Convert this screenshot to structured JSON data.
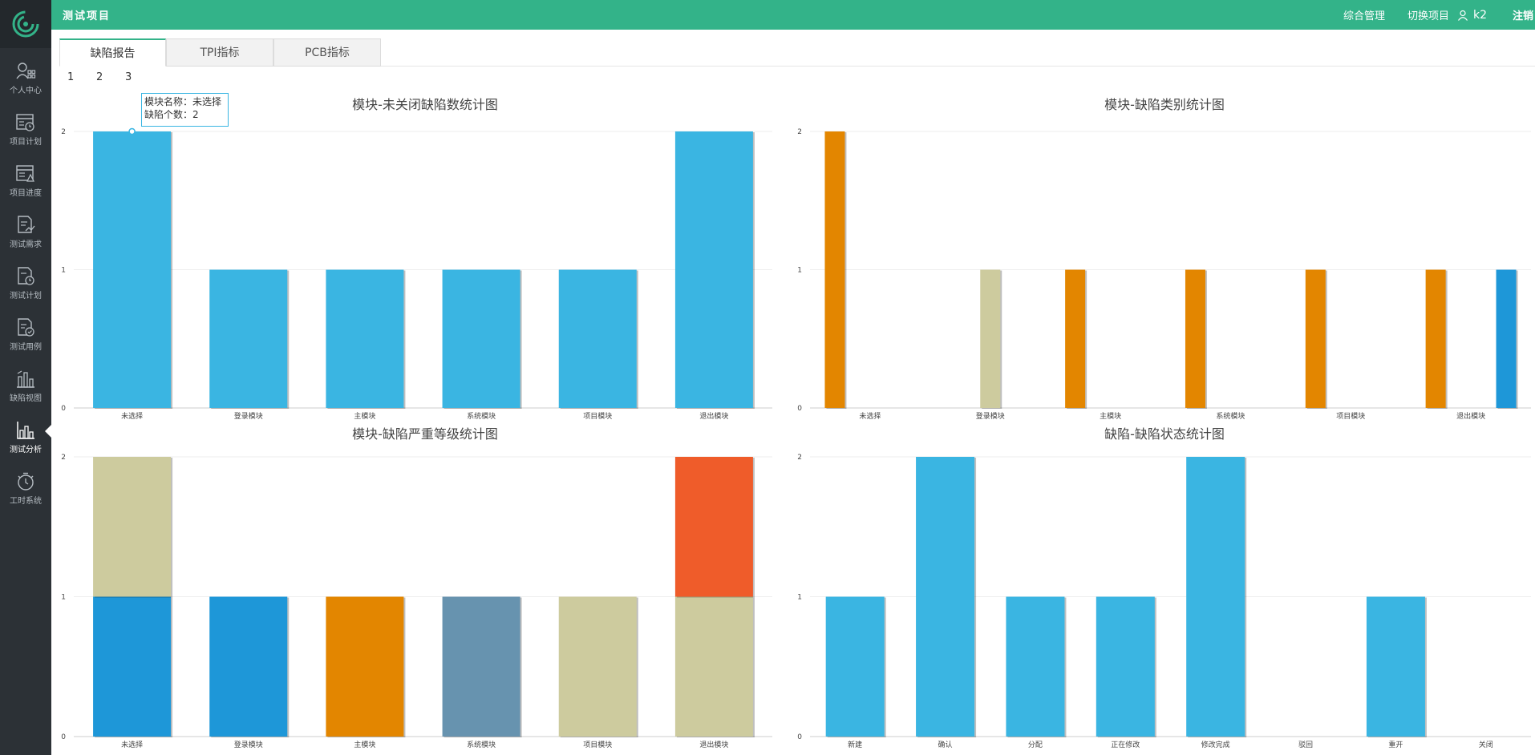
{
  "header": {
    "project_title": "测试项目",
    "nav_manage": "综合管理",
    "nav_switch": "切换项目",
    "user_name": "k2",
    "logout": "注销"
  },
  "sidebar": {
    "items": [
      {
        "label": "个人中心",
        "icon": "user-center-icon"
      },
      {
        "label": "项目计划",
        "icon": "project-plan-icon"
      },
      {
        "label": "项目进度",
        "icon": "project-progress-icon"
      },
      {
        "label": "测试需求",
        "icon": "test-requirement-icon"
      },
      {
        "label": "测试计划",
        "icon": "test-plan-icon"
      },
      {
        "label": "测试用例",
        "icon": "test-case-icon"
      },
      {
        "label": "缺陷视图",
        "icon": "defect-view-icon"
      },
      {
        "label": "测试分析",
        "icon": "test-analysis-icon",
        "active": true
      },
      {
        "label": "工时系统",
        "icon": "timesheet-icon"
      }
    ]
  },
  "tabs": [
    {
      "label": "缺陷报告",
      "active": true
    },
    {
      "label": "TPI指标"
    },
    {
      "label": "PCB指标"
    }
  ],
  "pager": [
    "1",
    "2",
    "3"
  ],
  "tooltip": {
    "line1": "模块名称：未选择",
    "line2": "缺陷个数：2"
  },
  "colors": {
    "header_bg": "#33b389",
    "sidebar_bg": "#2c3136",
    "bar_blue": "#3ab5e2",
    "dark_blue": "#1e97d8",
    "orange": "#e38600",
    "khaki": "#cdcb9e",
    "slate": "#6793af",
    "red_orange": "#ef5c2a"
  },
  "chart_data": [
    {
      "type": "bar",
      "title": "模块-未关闭缺陷数统计图",
      "categories": [
        "未选择",
        "登录模块",
        "主模块",
        "系统模块",
        "项目模块",
        "退出模块"
      ],
      "series": [
        {
          "values": [
            2,
            1,
            1,
            1,
            1,
            2
          ],
          "color": "#3ab5e2"
        }
      ],
      "ylim": [
        0,
        2
      ],
      "yticks": [
        "0",
        "1",
        "2"
      ],
      "grid": true
    },
    {
      "type": "bar",
      "title": "模块-缺陷类别统计图",
      "categories": [
        "未选择",
        "登录模块",
        "主模块",
        "系统模块",
        "项目模块",
        "退出模块"
      ],
      "series": [
        {
          "values": [
            2,
            0,
            1,
            1,
            1,
            1
          ],
          "color": "#e38600"
        },
        {
          "values": [
            0,
            1,
            0,
            0,
            0,
            0
          ],
          "color": "#cdcb9e"
        },
        {
          "values": [
            0,
            0,
            0,
            0,
            0,
            1
          ],
          "color": "#1e97d8"
        }
      ],
      "ylim": [
        0,
        2
      ],
      "yticks": [
        "0",
        "1",
        "2"
      ],
      "grid": true
    },
    {
      "type": "bar",
      "title": "模块-缺陷严重等级统计图",
      "stacked": true,
      "categories": [
        "未选择",
        "登录模块",
        "主模块",
        "系统模块",
        "项目模块",
        "退出模块"
      ],
      "series": [
        {
          "values": [
            1,
            1,
            0,
            0,
            0,
            0
          ],
          "color": "#1e97d8"
        },
        {
          "values": [
            0,
            0,
            1,
            0,
            0,
            0
          ],
          "color": "#e38600"
        },
        {
          "values": [
            0,
            0,
            0,
            1,
            0,
            0
          ],
          "color": "#6793af"
        },
        {
          "values": [
            1,
            0,
            0,
            0,
            1,
            1
          ],
          "color": "#cdcb9e"
        },
        {
          "values": [
            0,
            0,
            0,
            0,
            0,
            1
          ],
          "color": "#ef5c2a"
        }
      ],
      "ylim": [
        0,
        2
      ],
      "yticks": [
        "0",
        "1",
        "2"
      ],
      "grid": true
    },
    {
      "type": "bar",
      "title": "缺陷-缺陷状态统计图",
      "categories": [
        "新建",
        "确认",
        "分配",
        "正在修改",
        "修改完成",
        "驳回",
        "重开",
        "关闭"
      ],
      "series": [
        {
          "values": [
            1,
            2,
            1,
            1,
            2,
            0,
            1,
            0
          ],
          "color": "#3ab5e2"
        }
      ],
      "ylim": [
        0,
        2
      ],
      "yticks": [
        "0",
        "1",
        "2"
      ],
      "grid": true
    }
  ]
}
